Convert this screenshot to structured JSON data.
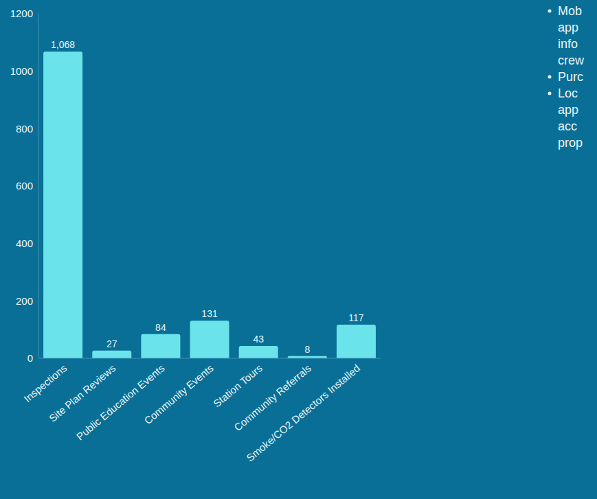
{
  "chart_data": {
    "type": "bar",
    "categories": [
      "Inspections",
      "Site Plan Reviews",
      "Public Education Events",
      "Community Events",
      "Station Tours",
      "Community Referrals",
      "Smoke/CO2 Detectors Installed"
    ],
    "values": [
      1068,
      27,
      84,
      131,
      43,
      8,
      117
    ],
    "value_labels": [
      "1,068",
      "27",
      "84",
      "131",
      "43",
      "8",
      "117"
    ],
    "color": "#6be3ea",
    "ylim": [
      0,
      1200
    ],
    "yticks": [
      0,
      200,
      400,
      600,
      800,
      1000,
      1200
    ],
    "grid": false,
    "data_labels": true,
    "annotations": [
      [
        "Mob",
        "app",
        "info",
        "crew"
      ],
      [
        "Purc"
      ],
      [
        "Loc",
        "app",
        "acc",
        "prop"
      ]
    ]
  }
}
